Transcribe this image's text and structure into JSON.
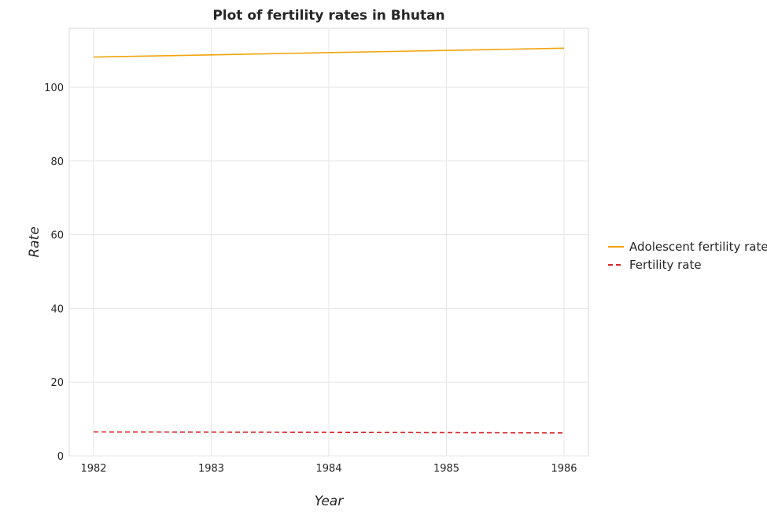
{
  "chart_data": {
    "type": "line",
    "title": "Plot of fertility rates in Bhutan",
    "xlabel": "Year",
    "ylabel": "Rate",
    "categories": [
      "1982",
      "1983",
      "1984",
      "1985",
      "1986"
    ],
    "ylim": [
      0,
      116
    ],
    "yticks": [
      0,
      20,
      40,
      60,
      80,
      100
    ],
    "grid": true,
    "legend_position": "right",
    "series": [
      {
        "name": "Adolescent fertility rate",
        "values": [
          108.2,
          108.8,
          109.4,
          110.0,
          110.6
        ],
        "color": "#f0a30a",
        "dash": "solid"
      },
      {
        "name": "Fertility rate",
        "values": [
          6.48,
          6.43,
          6.37,
          6.3,
          6.22
        ],
        "color": "#d62728",
        "dash": "dashed"
      }
    ]
  }
}
